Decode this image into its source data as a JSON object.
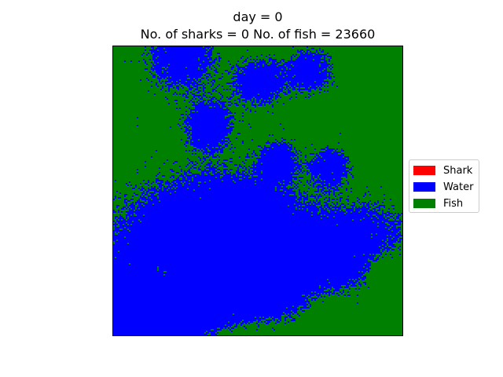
{
  "chart_data": {
    "type": "heatmap",
    "title_line1": "day = 0",
    "title_line2": "No. of sharks = 0 No. of fish = 23660",
    "day": 0,
    "sharks": 0,
    "fish": 23660,
    "grid_size": [
      184,
      184
    ],
    "axes_visible": false,
    "legend_position": "center-right",
    "categories": [
      {
        "name": "Shark",
        "color": "#ff0000"
      },
      {
        "name": "Water",
        "color": "#0000ff"
      },
      {
        "name": "Fish",
        "color": "#008000"
      }
    ],
    "water_regions": [
      {
        "cx": 0.23,
        "cy": 0.03,
        "r": 0.14
      },
      {
        "cx": 0.5,
        "cy": 0.12,
        "r": 0.1
      },
      {
        "cx": 0.68,
        "cy": 0.08,
        "r": 0.09
      },
      {
        "cx": 0.33,
        "cy": 0.27,
        "r": 0.09
      },
      {
        "cx": 0.57,
        "cy": 0.39,
        "r": 0.07
      },
      {
        "cx": 0.75,
        "cy": 0.41,
        "r": 0.07
      },
      {
        "cx": 0.22,
        "cy": 0.75,
        "r": 0.32
      },
      {
        "cx": 0.52,
        "cy": 0.78,
        "r": 0.28
      },
      {
        "cx": 0.88,
        "cy": 0.72,
        "r": 0.2
      },
      {
        "cx": 0.05,
        "cy": 0.95,
        "r": 0.18
      },
      {
        "cx": 0.4,
        "cy": 0.68,
        "r": 0.2
      }
    ],
    "fish_regions": [
      {
        "cx": 0.46,
        "cy": 1.05,
        "r": 0.14
      },
      {
        "cx": 0.8,
        "cy": 1.0,
        "r": 0.18
      },
      {
        "cx": 0.95,
        "cy": 0.78,
        "r": 0.09
      },
      {
        "cx": 0.17,
        "cy": 0.77,
        "r": 0.05
      }
    ]
  }
}
